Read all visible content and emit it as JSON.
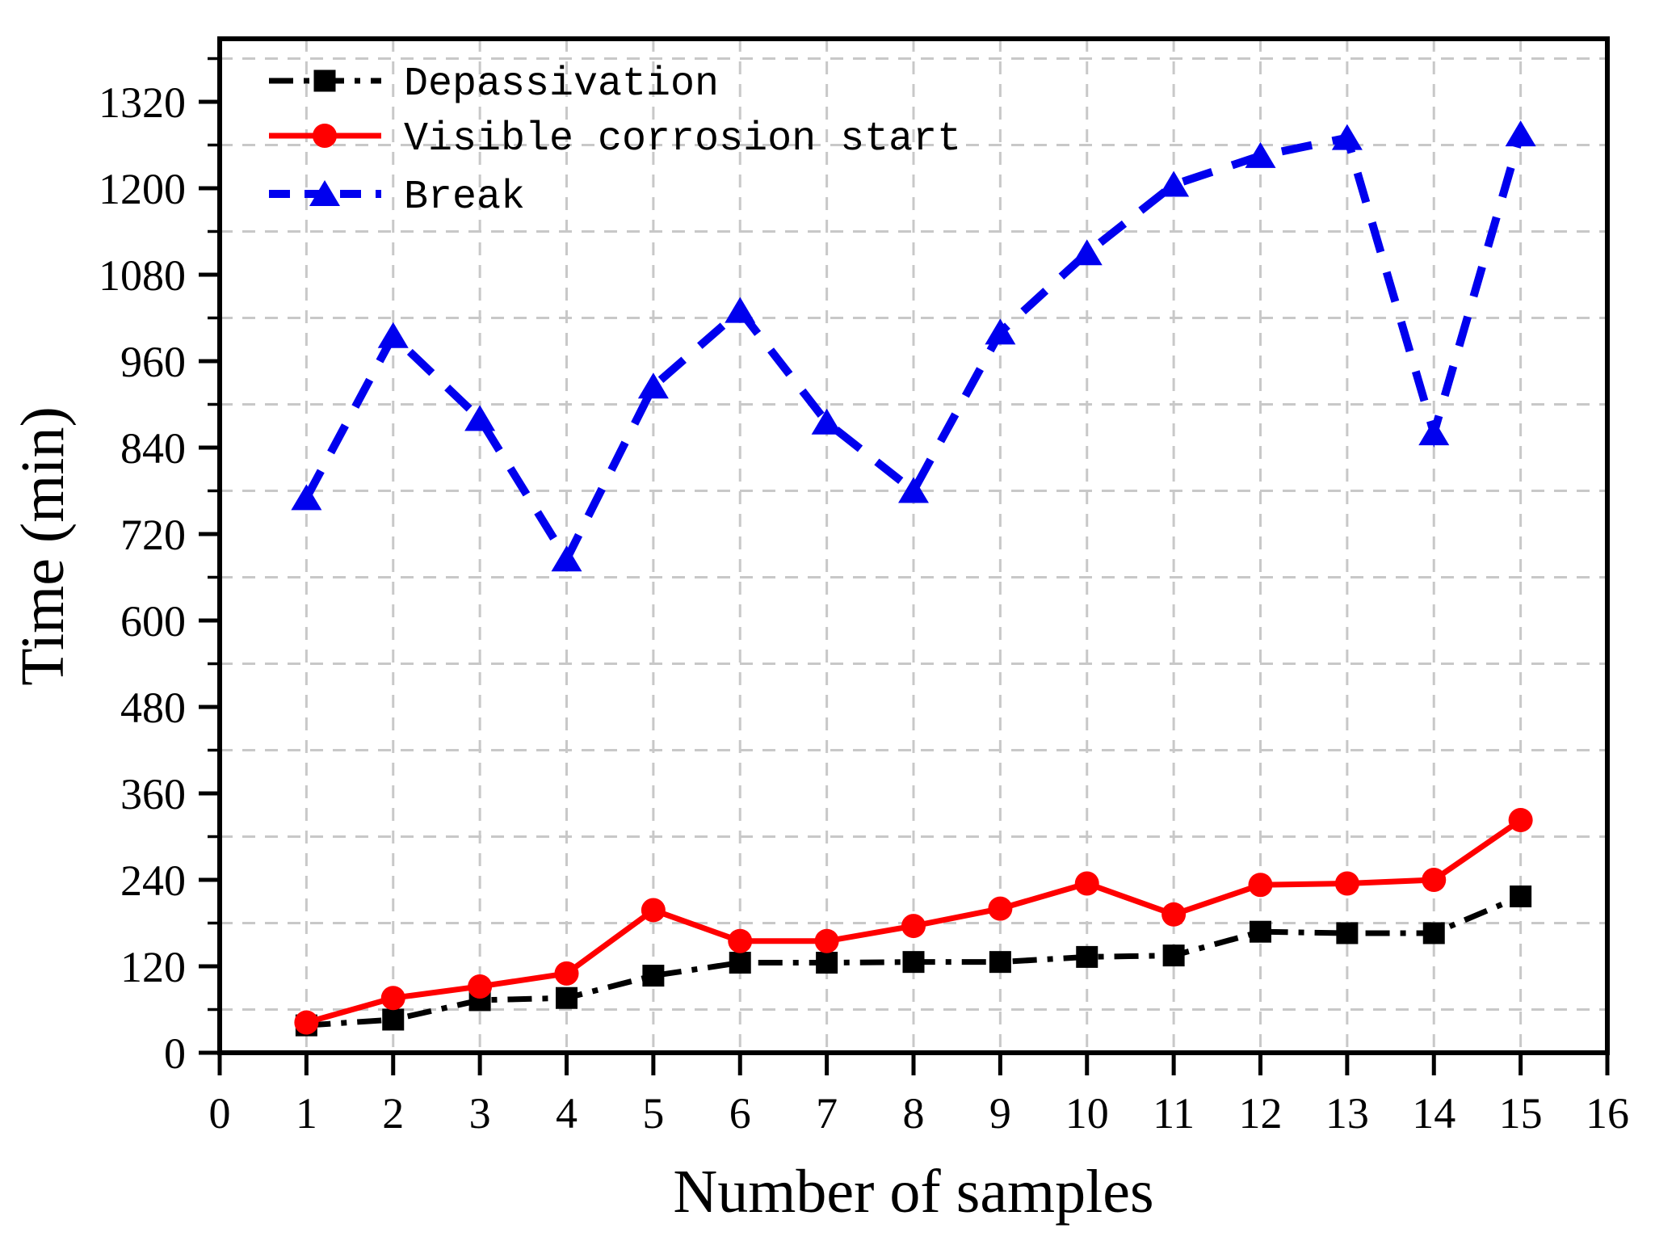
{
  "chart_data": {
    "type": "line",
    "title": "",
    "xlabel": "Number of samples",
    "ylabel": "Time (min)",
    "x": [
      1,
      2,
      3,
      4,
      5,
      6,
      7,
      8,
      9,
      10,
      11,
      12,
      13,
      14,
      15
    ],
    "series": [
      {
        "name": "Depassivation",
        "color": "#000000",
        "line_style": "dashdot",
        "marker": "square",
        "values": [
          38,
          46,
          73,
          76,
          107,
          125,
          125,
          126,
          126,
          133,
          135,
          168,
          166,
          166,
          217
        ]
      },
      {
        "name": "Visible corrosion start",
        "color": "#ff0000",
        "line_style": "solid",
        "marker": "circle",
        "values": [
          42,
          76,
          92,
          110,
          198,
          155,
          155,
          176,
          200,
          235,
          192,
          233,
          235,
          240,
          323
        ]
      },
      {
        "name": "Break",
        "color": "#0000ee",
        "line_style": "dashed",
        "marker": "triangle",
        "values": [
          770,
          995,
          880,
          685,
          925,
          1030,
          875,
          780,
          1000,
          1110,
          1205,
          1245,
          1270,
          860,
          1275
        ]
      }
    ],
    "xlim": [
      0,
      16
    ],
    "ylim": [
      0,
      1407
    ],
    "x_ticks": [
      0,
      1,
      2,
      3,
      4,
      5,
      6,
      7,
      8,
      9,
      10,
      11,
      12,
      13,
      14,
      15,
      16
    ],
    "y_ticks": [
      0,
      120,
      240,
      360,
      480,
      600,
      720,
      840,
      960,
      1080,
      1200,
      1320
    ],
    "y_minor_ticks": [
      60,
      180,
      300,
      420,
      540,
      660,
      780,
      900,
      1020,
      1140,
      1260,
      1380
    ],
    "grid": "dashed light-gray; vertical at every sample, horizontal at minor (60-offset) levels",
    "grid_color": "#c8c8c8",
    "legend_position": "upper-left",
    "legend_entries": [
      "Depassivation",
      "Visible corrosion start",
      "Break"
    ]
  }
}
